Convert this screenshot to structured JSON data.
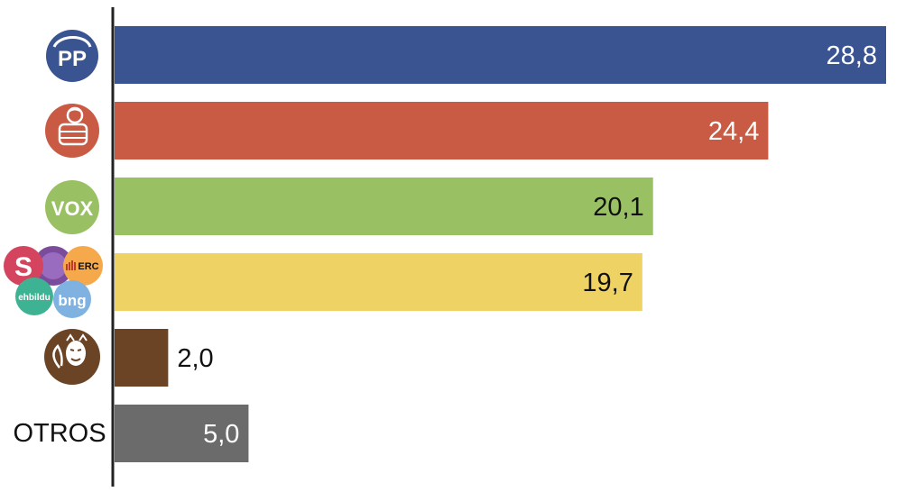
{
  "chart_data": {
    "type": "bar",
    "orientation": "horizontal",
    "categories": [
      "PP",
      "PSOE",
      "VOX",
      "SUMAR / ERC / EH Bildu / BNG",
      "SALF",
      "OTROS"
    ],
    "values": [
      28.8,
      24.4,
      20.1,
      19.7,
      2.0,
      5.0
    ],
    "value_labels": [
      "28,8",
      "24,4",
      "20,1",
      "19,7",
      "2,0",
      "5,0"
    ],
    "bar_colors": [
      "#3a5491",
      "#c95b45",
      "#99c163",
      "#eed263",
      "#6b4426",
      "#6b6b6b"
    ],
    "label_colors": [
      "#ffffff",
      "#ffffff",
      "#111111",
      "#111111",
      "#111111",
      "#ffffff"
    ],
    "label_inside": [
      true,
      true,
      true,
      true,
      false,
      true
    ],
    "xlim": [
      0,
      30
    ],
    "title": "",
    "xlabel": "",
    "ylabel": "",
    "grid": false,
    "legend": "none"
  },
  "row_labels": {
    "otros": "OTROS"
  },
  "logos": {
    "pp": {
      "icon": "pp-logo-icon",
      "text": "PP",
      "color": "#3a5491"
    },
    "psoe": {
      "icon": "psoe-rose-fist-icon",
      "color": "#c95b45"
    },
    "vox": {
      "icon": "vox-logo-icon",
      "text": "VOX",
      "color": "#99c163"
    },
    "sumar": {
      "icon": "sumar-logo-icon",
      "text": "S",
      "color": "#d5445f"
    },
    "podemos": {
      "icon": "podemos-circle-icon",
      "color": "#7b4c9c"
    },
    "erc": {
      "icon": "erc-logo-icon",
      "text": "ERC",
      "color": "#f5a94b"
    },
    "bildu": {
      "icon": "ehbildu-logo-icon",
      "text": "ehbildu",
      "color": "#3eb394"
    },
    "bng": {
      "icon": "bng-logo-icon",
      "text": "bng",
      "color": "#7fb2e1"
    },
    "salf": {
      "icon": "salf-squirrel-mask-icon",
      "color": "#6b4426"
    }
  }
}
